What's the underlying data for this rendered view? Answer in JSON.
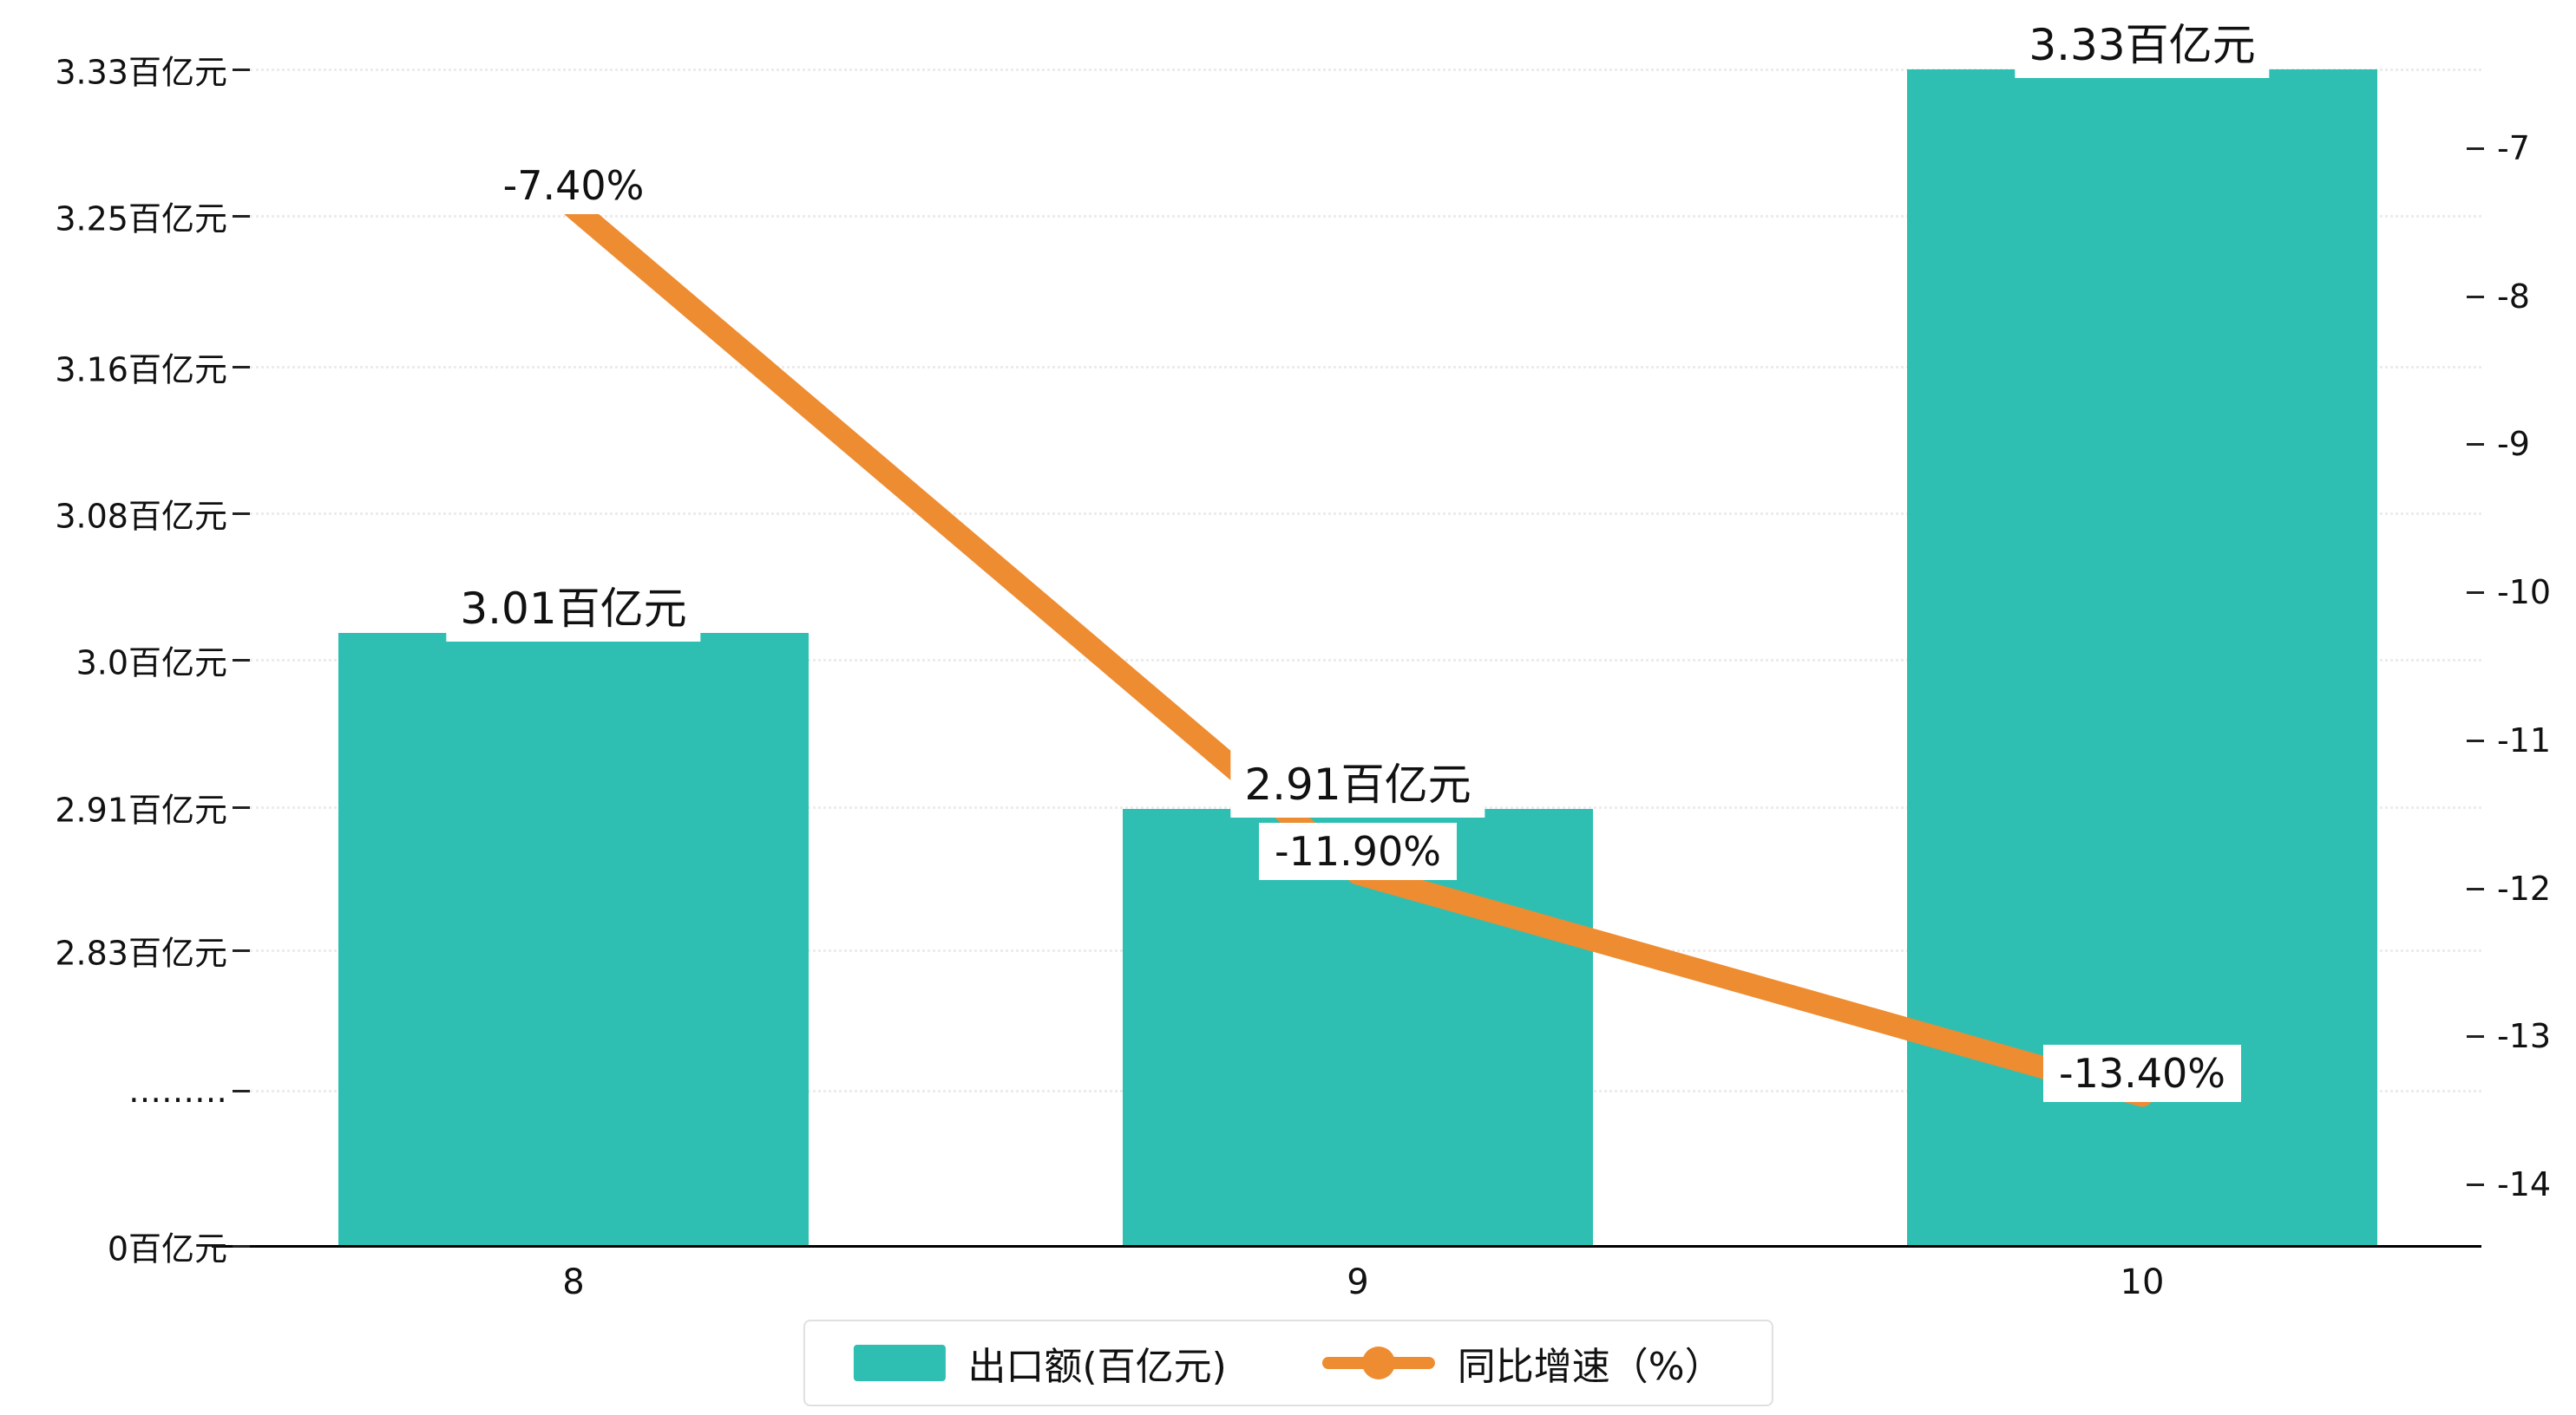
{
  "page": {
    "background": "#ffffff"
  },
  "chart_data": {
    "type": "bar+line",
    "categories": [
      "8",
      "9",
      "10"
    ],
    "series": [
      {
        "name": "出口额(百亿元)",
        "type": "bar",
        "color": "#2ebfb2",
        "values": [
          3.01,
          2.91,
          3.33
        ],
        "data_labels": [
          "3.01百亿元",
          "2.91百亿元",
          "3.33百亿元"
        ]
      },
      {
        "name": "同比增速（%）",
        "type": "line",
        "color": "#ee8c31",
        "values": [
          -7.4,
          -11.9,
          -13.4
        ],
        "data_labels": [
          "-7.40%",
          "-11.90%",
          "-13.40%"
        ]
      }
    ],
    "left_axis": {
      "unit": "百亿元",
      "tick_labels": [
        "3.33百亿元",
        "3.25百亿元",
        "3.16百亿元",
        "3.08百亿元",
        "3.0百亿元",
        "2.91百亿元",
        "2.83百亿元",
        "………",
        "0百亿元"
      ],
      "tick_values": [
        3.33,
        3.25,
        3.16,
        3.08,
        3.0,
        2.91,
        2.83,
        null,
        0
      ],
      "broken_axis": true
    },
    "right_axis": {
      "unit": "%",
      "tick_labels": [
        "-7",
        "-8",
        "-9",
        "-10",
        "-11",
        "-12",
        "-13",
        "-14"
      ],
      "tick_values": [
        -7,
        -8,
        -9,
        -10,
        -11,
        -12,
        -13,
        -14
      ]
    },
    "x_axis": {
      "tick_labels": [
        "8",
        "9",
        "10"
      ]
    },
    "grid": true,
    "legend_position": "bottom",
    "legend": [
      "出口额(百亿元)",
      "同比增速（%）"
    ]
  }
}
